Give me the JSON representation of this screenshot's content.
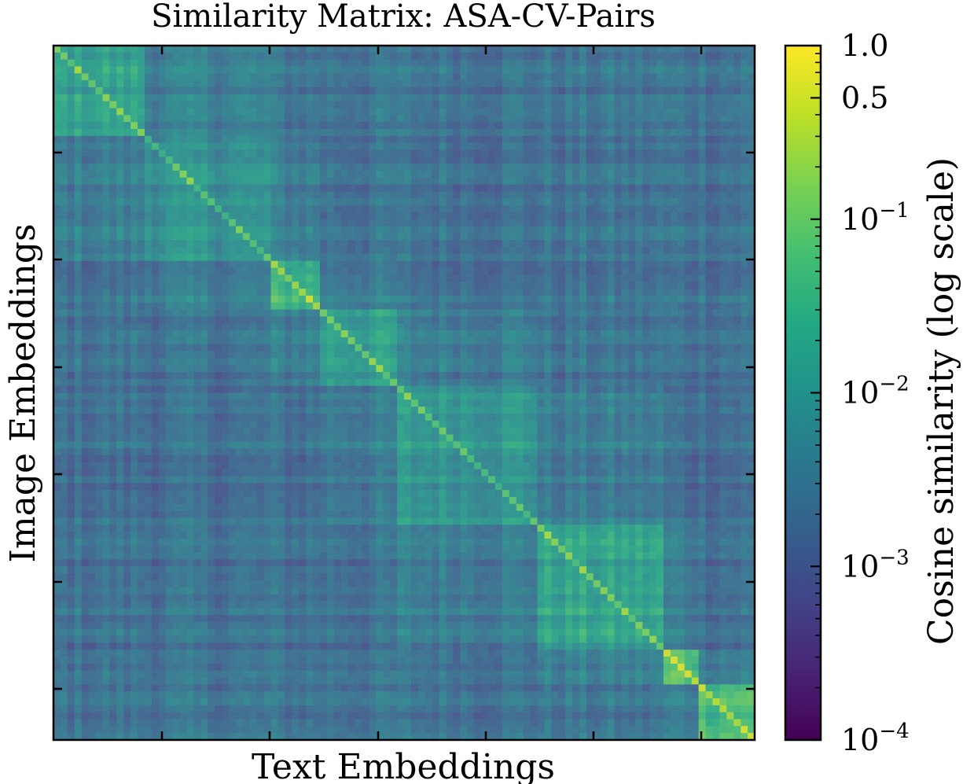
{
  "chart_data": {
    "type": "heatmap",
    "title": "Similarity Matrix: ASA-CV-Pairs",
    "xlabel": "Text Embeddings",
    "ylabel": "Image Embeddings",
    "colorbar": {
      "label": "Cosine similarity (log scale)",
      "scale": "log",
      "range": [
        0.0001,
        1.0
      ],
      "colormap": "viridis",
      "ticks": [
        {
          "value": 1.0,
          "label": "1.0"
        },
        {
          "value": 0.5,
          "label": "0.5"
        },
        {
          "value": 0.1,
          "base": "10",
          "exp": "−1"
        },
        {
          "value": 0.01,
          "base": "10",
          "exp": "−2"
        },
        {
          "value": 0.001,
          "base": "10",
          "exp": "−3"
        },
        {
          "value": 0.0001,
          "base": "10",
          "exp": "−4"
        }
      ]
    },
    "diagonal_blocks": [
      {
        "start": 0.0,
        "end": 0.13,
        "level": 0.62
      },
      {
        "start": 0.13,
        "end": 0.31,
        "level": 0.56
      },
      {
        "start": 0.31,
        "end": 0.38,
        "level": 0.72
      },
      {
        "start": 0.38,
        "end": 0.49,
        "level": 0.62
      },
      {
        "start": 0.49,
        "end": 0.69,
        "level": 0.6
      },
      {
        "start": 0.69,
        "end": 0.87,
        "level": 0.64
      },
      {
        "start": 0.87,
        "end": 0.92,
        "level": 0.78
      },
      {
        "start": 0.92,
        "end": 1.0,
        "level": 0.76
      }
    ],
    "background_level": 0.34
  }
}
